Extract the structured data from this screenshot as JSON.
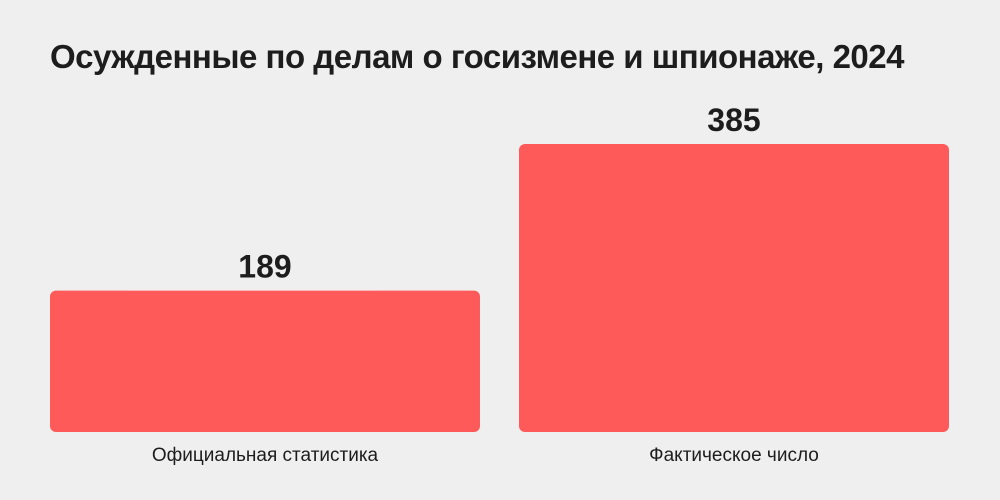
{
  "chart_data": {
    "type": "bar",
    "title": "Осужденные по делам о госизмене и шпионаже, 2024",
    "categories": [
      "Официальная статистика",
      "Фактическое число"
    ],
    "values": [
      189,
      385
    ],
    "ylim": [
      0,
      385
    ],
    "grid": false,
    "bar_color": "#ff5a5a"
  }
}
